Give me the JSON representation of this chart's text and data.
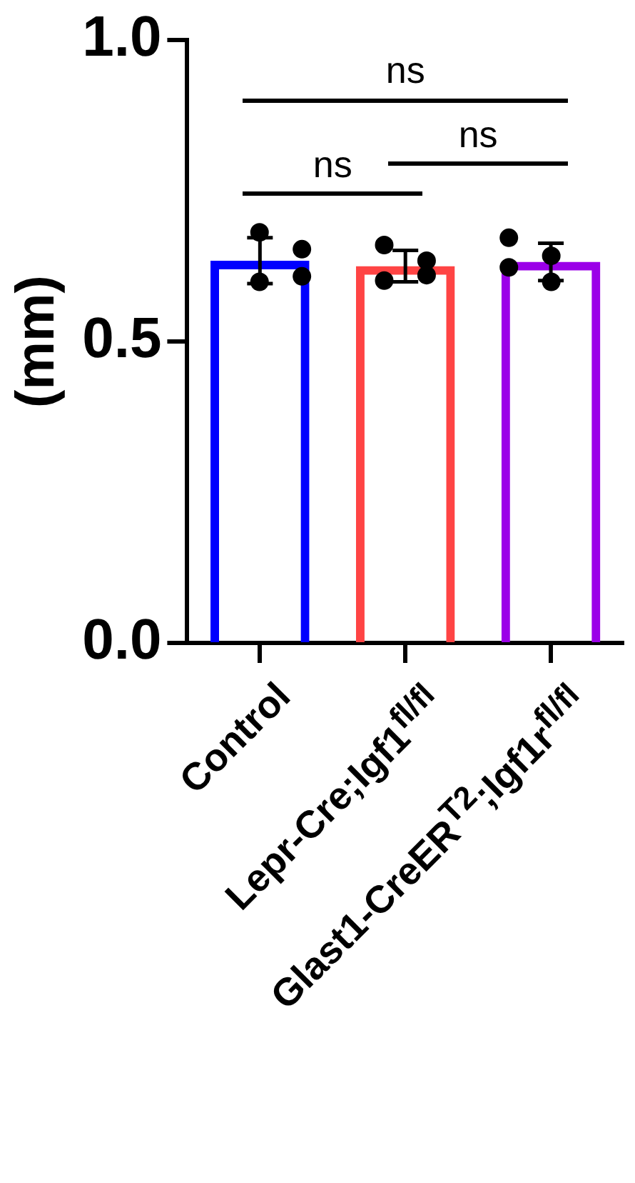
{
  "chart_data": {
    "type": "bar",
    "ylabel": "(mm)",
    "categories": [
      "Control",
      "Lepr-Cre;Igf1$^{fl/fl}$",
      "Glast1-CreER$^{T2}$;Igf1r$^{fl/fl}$"
    ],
    "series": [
      {
        "colors": [
          "#0000ff",
          "#ff4444",
          "#9b00e8"
        ],
        "values": [
          0.634,
          0.625,
          0.632
        ],
        "errors": [
          0.038,
          0.026,
          0.031
        ]
      },
      {
        "type": "scatter",
        "color": "#000000",
        "x": [
          "Control",
          "Control",
          "Control",
          "Control",
          "Lepr-Cre;Igf1$^{fl/fl}$",
          "Lepr-Cre;Igf1$^{fl/fl}$",
          "Lepr-Cre;Igf1$^{fl/fl}$",
          "Lepr-Cre;Igf1$^{fl/fl}$",
          "Glast1-CreER$^{T2}$;Igf1r$^{fl/fl}$",
          "Glast1-CreER$^{T2}$;Igf1r$^{fl/fl}$",
          "Glast1-CreER$^{T2}$;Igf1r$^{fl/fl}$",
          "Glast1-CreER$^{T2}$;Igf1r$^{fl/fl}$"
        ],
        "values": [
          0.681,
          0.653,
          0.599,
          0.608,
          0.66,
          0.634,
          0.601,
          0.61,
          0.672,
          0.642,
          0.623,
          0.599
        ]
      }
    ],
    "ylim": [
      0,
      1
    ],
    "yticks": [
      {
        "value": 0,
        "label": "0.0"
      },
      {
        "value": 0.5,
        "label": "0.5"
      },
      {
        "value": 1,
        "label": "1.0"
      }
    ],
    "annotations": [
      "ns",
      "ns",
      "ns"
    ],
    "grid": false,
    "legend": false,
    "marker": "circle"
  }
}
